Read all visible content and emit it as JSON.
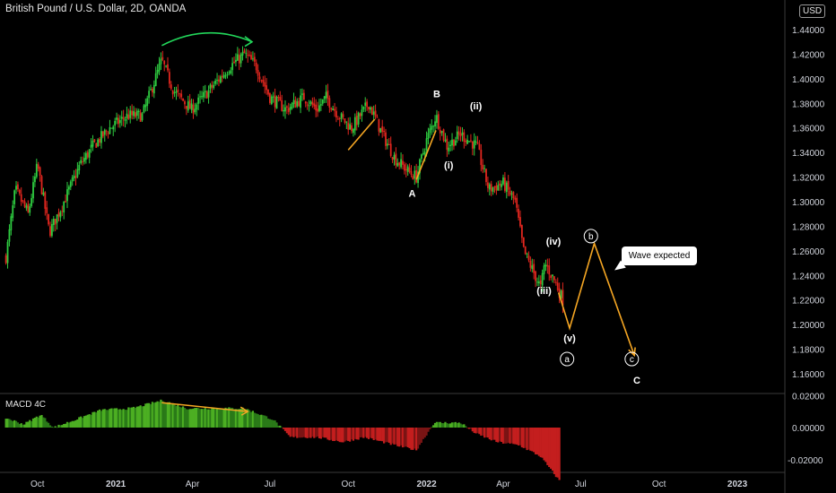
{
  "header": {
    "title": "British Pound / U.S. Dollar, 2D, OANDA",
    "currency_badge": "USD",
    "indicator_label": "MACD 4C"
  },
  "callout": {
    "text": "Wave expected"
  },
  "colors": {
    "background": "#000000",
    "up_candle": "#2ecc40",
    "down_candle": "#e0261e",
    "annotation": "#f5a623",
    "macd_positive": "#2e9e22",
    "macd_negative": "#a31b1b",
    "axis_text": "#d1d4dc"
  },
  "chart_data": [
    {
      "type": "candlestick",
      "title": "British Pound / U.S. Dollar, 2D, OANDA",
      "ylim": [
        1.145,
        1.46
      ],
      "y_ticks": [
        "1.44000",
        "1.42000",
        "1.40000",
        "1.38000",
        "1.36000",
        "1.34000",
        "1.32000",
        "1.30000",
        "1.28000",
        "1.26000",
        "1.24000",
        "1.22000",
        "1.20000",
        "1.18000",
        "1.16000"
      ],
      "x_ticks": [
        "Oct",
        "2021",
        "Apr",
        "Jul",
        "Oct",
        "2022",
        "Apr",
        "Jul",
        "Oct",
        "2023"
      ],
      "price_path": [
        [
          "2020-08-25",
          1.255
        ],
        [
          "2020-09-05",
          1.31
        ],
        [
          "2020-09-20",
          1.29
        ],
        [
          "2020-10-01",
          1.33
        ],
        [
          "2020-10-15",
          1.275
        ],
        [
          "2020-11-01",
          1.3
        ],
        [
          "2020-11-20",
          1.33
        ],
        [
          "2020-12-05",
          1.345
        ],
        [
          "2020-12-25",
          1.36
        ],
        [
          "2021-01-15",
          1.37
        ],
        [
          "2021-02-01",
          1.37
        ],
        [
          "2021-02-24",
          1.415
        ],
        [
          "2021-03-10",
          1.39
        ],
        [
          "2021-03-31",
          1.375
        ],
        [
          "2021-04-20",
          1.39
        ],
        [
          "2021-05-15",
          1.41
        ],
        [
          "2021-06-01",
          1.42
        ],
        [
          "2021-06-15",
          1.41
        ],
        [
          "2021-07-01",
          1.385
        ],
        [
          "2021-07-20",
          1.375
        ],
        [
          "2021-08-10",
          1.385
        ],
        [
          "2021-08-25",
          1.375
        ],
        [
          "2021-09-05",
          1.385
        ],
        [
          "2021-09-20",
          1.37
        ],
        [
          "2021-10-05",
          1.36
        ],
        [
          "2021-10-25",
          1.38
        ],
        [
          "2021-11-10",
          1.355
        ],
        [
          "2021-11-25",
          1.335
        ],
        [
          "2021-12-10",
          1.325
        ],
        [
          "2021-12-20",
          1.32
        ],
        [
          "2022-01-01",
          1.35
        ],
        [
          "2022-01-12",
          1.37
        ],
        [
          "2022-01-25",
          1.345
        ],
        [
          "2022-02-10",
          1.355
        ],
        [
          "2022-03-01",
          1.345
        ],
        [
          "2022-03-15",
          1.31
        ],
        [
          "2022-04-01",
          1.315
        ],
        [
          "2022-04-15",
          1.3
        ],
        [
          "2022-04-25",
          1.26
        ],
        [
          "2022-05-05",
          1.245
        ],
        [
          "2022-05-15",
          1.23
        ],
        [
          "2022-05-20",
          1.25
        ],
        [
          "2022-06-01",
          1.235
        ],
        [
          "2022-06-10",
          1.22
        ]
      ],
      "annotations": [
        {
          "text": "A",
          "date": "2021-12-15",
          "value": 1.307,
          "style": "plain"
        },
        {
          "text": "B",
          "date": "2022-01-13",
          "value": 1.388,
          "style": "plain"
        },
        {
          "text": "(i)",
          "date": "2022-01-27",
          "value": 1.33,
          "style": "plain"
        },
        {
          "text": "(ii)",
          "date": "2022-02-28",
          "value": 1.378,
          "style": "plain"
        },
        {
          "text": "(iii)",
          "date": "2022-05-19",
          "value": 1.228,
          "style": "plain"
        },
        {
          "text": "(iv)",
          "date": "2022-05-30",
          "value": 1.268,
          "style": "plain"
        },
        {
          "text": "(v)",
          "date": "2022-06-18",
          "value": 1.189,
          "style": "plain"
        },
        {
          "text": "a",
          "date": "2022-06-15",
          "value": 1.172,
          "style": "circled"
        },
        {
          "text": "b",
          "date": "2022-07-13",
          "value": 1.272,
          "style": "circled"
        },
        {
          "text": "c",
          "date": "2022-08-30",
          "value": 1.172,
          "style": "circled"
        },
        {
          "text": "C",
          "date": "2022-09-05",
          "value": 1.155,
          "style": "plain"
        }
      ],
      "drawn_lines": [
        [
          [
            "2021-10-01",
            1.342
          ],
          [
            "2021-11-01",
            1.367
          ]
        ],
        [
          [
            "2021-12-20",
            1.318
          ],
          [
            "2022-01-12",
            1.358
          ]
        ],
        [
          [
            "2022-06-05",
            1.226
          ],
          [
            "2022-06-18",
            1.197
          ],
          [
            "2022-07-17",
            1.266
          ],
          [
            "2022-09-02",
            1.175
          ]
        ]
      ],
      "curved_arrow": [
        [
          "2021-02-24",
          1.427
        ],
        [
          "2021-06-10",
          1.43
        ]
      ]
    },
    {
      "type": "histogram",
      "title": "MACD 4C",
      "ylim": [
        -0.034,
        0.022
      ],
      "y_ticks": [
        "0.02000",
        "0.00000",
        "-0.02000"
      ],
      "histogram_path": [
        [
          "2020-08-25",
          0.006
        ],
        [
          "2020-09-15",
          0.002
        ],
        [
          "2020-10-05",
          0.008
        ],
        [
          "2020-10-20",
          0.0
        ],
        [
          "2020-11-10",
          0.004
        ],
        [
          "2020-12-15",
          0.011
        ],
        [
          "2021-01-20",
          0.012
        ],
        [
          "2021-02-25",
          0.017
        ],
        [
          "2021-03-25",
          0.012
        ],
        [
          "2021-04-25",
          0.012
        ],
        [
          "2021-06-01",
          0.012
        ],
        [
          "2021-07-05",
          0.005
        ],
        [
          "2021-07-25",
          -0.006
        ],
        [
          "2021-08-25",
          -0.006
        ],
        [
          "2021-09-25",
          -0.009
        ],
        [
          "2021-10-20",
          -0.006
        ],
        [
          "2021-11-25",
          -0.011
        ],
        [
          "2021-12-20",
          -0.014
        ],
        [
          "2022-01-10",
          0.003
        ],
        [
          "2022-02-10",
          0.003
        ],
        [
          "2022-03-01",
          -0.004
        ],
        [
          "2022-03-25",
          -0.009
        ],
        [
          "2022-04-20",
          -0.011
        ],
        [
          "2022-05-15",
          -0.018
        ],
        [
          "2022-06-06",
          -0.033
        ]
      ],
      "divergence_line": [
        [
          "2021-02-24",
          0.0155
        ],
        [
          "2021-06-05",
          0.01
        ]
      ]
    }
  ]
}
